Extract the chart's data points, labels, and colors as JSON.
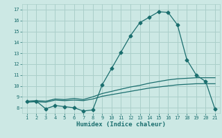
{
  "xlabel": "Humidex (Indice chaleur)",
  "xlim_min": 0.5,
  "xlim_max": 21.5,
  "ylim_min": 7.5,
  "ylim_max": 17.5,
  "xticks": [
    1,
    2,
    3,
    4,
    5,
    6,
    7,
    8,
    9,
    10,
    11,
    12,
    13,
    14,
    15,
    16,
    17,
    18,
    19,
    20,
    21
  ],
  "yticks": [
    8,
    9,
    10,
    11,
    12,
    13,
    14,
    15,
    16,
    17
  ],
  "bg_color": "#cce8e4",
  "grid_color": "#aacfca",
  "line_color": "#1a6e6e",
  "line1_x": [
    1,
    2,
    3,
    4,
    5,
    6,
    7,
    8,
    9,
    10,
    11,
    12,
    13,
    14,
    15,
    16,
    17,
    18,
    19,
    20,
    21
  ],
  "line1_y": [
    8.6,
    8.6,
    7.9,
    8.2,
    8.1,
    8.0,
    7.7,
    7.8,
    10.1,
    11.6,
    13.1,
    14.6,
    15.8,
    16.3,
    16.8,
    16.75,
    15.6,
    12.4,
    11.0,
    10.4,
    7.85
  ],
  "line2_x": [
    1,
    2,
    3,
    4,
    5,
    6,
    7,
    8,
    9,
    10,
    11,
    12,
    13,
    14,
    15,
    16,
    17,
    18,
    19,
    20,
    21
  ],
  "line2_y": [
    8.5,
    8.55,
    8.5,
    8.7,
    8.65,
    8.7,
    8.65,
    8.8,
    9.05,
    9.2,
    9.35,
    9.5,
    9.65,
    9.8,
    9.9,
    10.0,
    10.1,
    10.15,
    10.2,
    10.2,
    10.2
  ],
  "line3_x": [
    1,
    2,
    3,
    4,
    5,
    6,
    7,
    8,
    9,
    10,
    11,
    12,
    13,
    14,
    15,
    16,
    17,
    18,
    19,
    20,
    21
  ],
  "line3_y": [
    8.6,
    8.65,
    8.6,
    8.8,
    8.75,
    8.85,
    8.75,
    9.0,
    9.3,
    9.5,
    9.7,
    9.9,
    10.05,
    10.25,
    10.4,
    10.55,
    10.65,
    10.7,
    10.75,
    10.75,
    10.75
  ],
  "tick_fontsize": 5.0,
  "xlabel_fontsize": 6.5,
  "marker_size": 2.5,
  "line_width": 0.9
}
